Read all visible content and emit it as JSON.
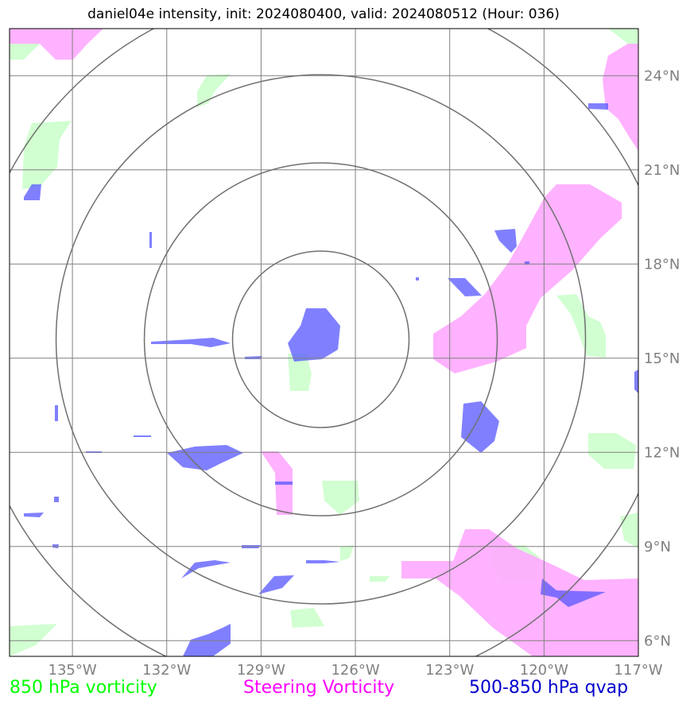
{
  "title": "daniel04e intensity, init: 2024080400, valid: 2024080512 (Hour: 036)",
  "map": {
    "lon_range": [
      -137,
      -117
    ],
    "lat_range": [
      5.5,
      25.5
    ],
    "lon_ticks": [
      {
        "value": -135,
        "label": "135°W"
      },
      {
        "value": -132,
        "label": "132°W"
      },
      {
        "value": -129,
        "label": "129°W"
      },
      {
        "value": -126,
        "label": "126°W"
      },
      {
        "value": -123,
        "label": "123°W"
      },
      {
        "value": -120,
        "label": "120°W"
      },
      {
        "value": -117,
        "label": "117°W"
      }
    ],
    "lat_ticks": [
      {
        "value": 24,
        "label": "24°N"
      },
      {
        "value": 21,
        "label": "21°N"
      },
      {
        "value": 18,
        "label": "18°N"
      },
      {
        "value": 15,
        "label": "15°N"
      },
      {
        "value": 12,
        "label": "12°N"
      },
      {
        "value": 9,
        "label": "9°N"
      },
      {
        "value": 6,
        "label": "6°N"
      }
    ],
    "range_ring_center": {
      "lon": -127.1,
      "lat": 15.6
    },
    "range_ring_count": 4,
    "gridlines": true
  },
  "legend": [
    {
      "label": "850 hPa vorticity",
      "color": "#00ff00"
    },
    {
      "label": "Steering Vorticity",
      "color": "#ff00ff"
    },
    {
      "label": "500-850 hPa qvap",
      "color": "#0000cc"
    }
  ],
  "colors": {
    "vort850_fill": "#ccffcc",
    "steering_fill": "#ffaaff",
    "qvap_fill": "#5555ff",
    "grid": "#808080",
    "ring": "#707070",
    "tick_label": "#808080"
  }
}
